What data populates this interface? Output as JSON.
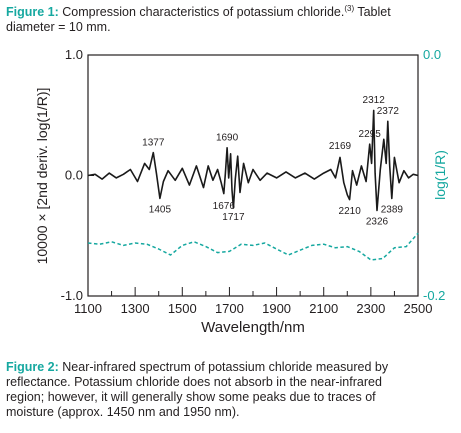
{
  "caption_top": {
    "label": "Figure 1:",
    "text_line1": " Compression characteristics of potassium chloride.",
    "ref": "(3)",
    "text_line1_end": " Tablet",
    "text_line2": "diameter = 10 mm."
  },
  "caption_bottom": {
    "label": "Figure 2:",
    "line1": " Near-infrared spectrum of potassium chloride measured by",
    "line2": "reflectance. Potassium chloride does not absorb in the near-infrared",
    "line3": "region; however, it will generally show some peaks due to traces of",
    "line4": "moisture (approx. 1450 nm and 1950 nm)."
  },
  "chart_data": {
    "type": "line",
    "xlabel": "Wavelength/nm",
    "ylabel_left": "10000 × [2nd deriv. log(1/R)]",
    "ylabel_right": "log(1/R)",
    "xlim": [
      1100,
      2500
    ],
    "ylim_left": [
      -1.0,
      1.0
    ],
    "ylim_right": [
      -0.2,
      0.0
    ],
    "x_ticks": [
      1100,
      1300,
      1500,
      1700,
      1900,
      2100,
      2300,
      2500
    ],
    "y_ticks_left": [
      "1.0",
      "0.0",
      "-1.0"
    ],
    "y_ticks_right": [
      "0.0",
      "-0.2"
    ],
    "colors": {
      "derivative": "#1a1a1a",
      "absorbance": "#16a8a0",
      "label_accent": "#16a8a0"
    },
    "peak_labels": [
      {
        "x": 1377,
        "y": 0.2,
        "label": "1377"
      },
      {
        "x": 1405,
        "y": -0.2,
        "label": "1405"
      },
      {
        "x": 1676,
        "y": -0.17,
        "label": "1676"
      },
      {
        "x": 1690,
        "y": 0.24,
        "label": "1690"
      },
      {
        "x": 1717,
        "y": -0.26,
        "label": "1717"
      },
      {
        "x": 2169,
        "y": 0.17,
        "label": "2169"
      },
      {
        "x": 2210,
        "y": -0.21,
        "label": "2210"
      },
      {
        "x": 2295,
        "y": 0.27,
        "label": "2295"
      },
      {
        "x": 2312,
        "y": 0.55,
        "label": "2312"
      },
      {
        "x": 2326,
        "y": -0.3,
        "label": "2326"
      },
      {
        "x": 2372,
        "y": 0.46,
        "label": "2372"
      },
      {
        "x": 2389,
        "y": -0.2,
        "label": "2389"
      }
    ],
    "series": [
      {
        "style": "solid",
        "axis": "left",
        "x": [
          1100,
          1130,
          1160,
          1190,
          1220,
          1250,
          1280,
          1310,
          1340,
          1360,
          1377,
          1390,
          1405,
          1420,
          1440,
          1470,
          1500,
          1530,
          1560,
          1590,
          1610,
          1630,
          1650,
          1665,
          1676,
          1683,
          1690,
          1697,
          1705,
          1711,
          1717,
          1725,
          1735,
          1745,
          1760,
          1780,
          1800,
          1830,
          1860,
          1900,
          1940,
          1980,
          2020,
          2060,
          2100,
          2130,
          2150,
          2169,
          2185,
          2200,
          2210,
          2222,
          2240,
          2260,
          2280,
          2295,
          2303,
          2312,
          2318,
          2326,
          2340,
          2355,
          2365,
          2372,
          2380,
          2389,
          2400,
          2420,
          2440,
          2460,
          2480,
          2500
        ],
        "y": [
          0.0,
          0.01,
          -0.03,
          0.02,
          -0.02,
          0.01,
          0.05,
          -0.05,
          0.1,
          0.05,
          0.19,
          0.02,
          -0.19,
          -0.05,
          0.04,
          -0.04,
          0.06,
          -0.08,
          0.08,
          -0.1,
          0.08,
          -0.04,
          0.05,
          -0.06,
          -0.15,
          0.02,
          0.23,
          -0.02,
          0.18,
          -0.12,
          -0.27,
          -0.03,
          0.16,
          -0.14,
          0.1,
          -0.06,
          0.05,
          -0.04,
          0.02,
          -0.02,
          0.03,
          -0.02,
          0.02,
          -0.03,
          0.02,
          0.05,
          -0.02,
          0.15,
          -0.06,
          -0.16,
          -0.2,
          0.04,
          -0.08,
          0.08,
          -0.05,
          0.26,
          0.1,
          0.54,
          0.02,
          -0.29,
          0.05,
          0.3,
          0.1,
          0.45,
          0.08,
          -0.19,
          0.15,
          -0.06,
          0.04,
          -0.02,
          0.01,
          0.0
        ]
      },
      {
        "style": "dashed",
        "axis": "right",
        "x": [
          1100,
          1150,
          1200,
          1250,
          1300,
          1350,
          1400,
          1450,
          1500,
          1550,
          1600,
          1650,
          1700,
          1750,
          1800,
          1850,
          1900,
          1950,
          2000,
          2050,
          2100,
          2150,
          2200,
          2250,
          2300,
          2350,
          2400,
          2450,
          2500
        ],
        "y": [
          -0.156,
          -0.157,
          -0.155,
          -0.158,
          -0.156,
          -0.157,
          -0.161,
          -0.166,
          -0.158,
          -0.155,
          -0.159,
          -0.164,
          -0.163,
          -0.157,
          -0.158,
          -0.156,
          -0.161,
          -0.166,
          -0.162,
          -0.158,
          -0.157,
          -0.16,
          -0.159,
          -0.163,
          -0.17,
          -0.169,
          -0.16,
          -0.159,
          -0.148
        ]
      }
    ]
  }
}
